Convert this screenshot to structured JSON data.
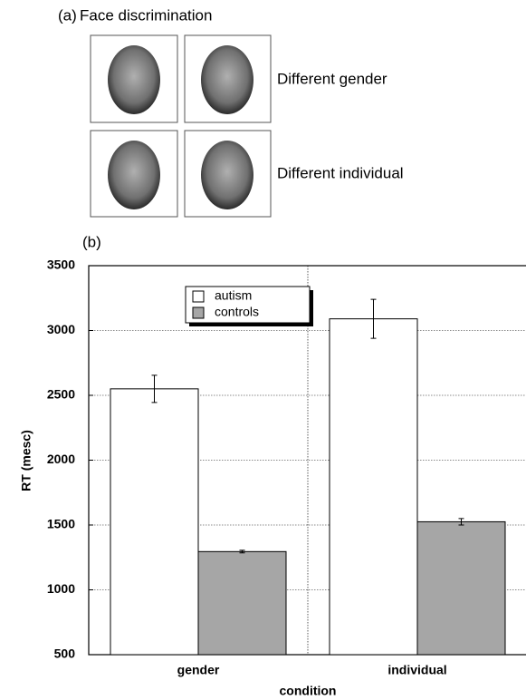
{
  "panel_a": {
    "label": "(a)",
    "title": "Face discrimination",
    "rows": [
      "Different gender",
      "Different individual"
    ]
  },
  "chart_data": {
    "type": "bar",
    "panel_label": "(b)",
    "xlabel": "condition",
    "ylabel": "RT (mesc)",
    "categories": [
      "gender",
      "individual"
    ],
    "series": [
      {
        "name": "autism",
        "color": "#ffffff",
        "values": [
          2550,
          3090
        ],
        "errors": [
          105,
          150
        ]
      },
      {
        "name": "controls",
        "color": "#a6a6a6",
        "values": [
          1295,
          1525
        ],
        "errors": [
          10,
          25
        ]
      }
    ],
    "ylim": [
      500,
      3500
    ],
    "yticks": [
      500,
      1000,
      1500,
      2000,
      2500,
      3000,
      3500
    ],
    "grid": true,
    "legend": "top-center"
  }
}
